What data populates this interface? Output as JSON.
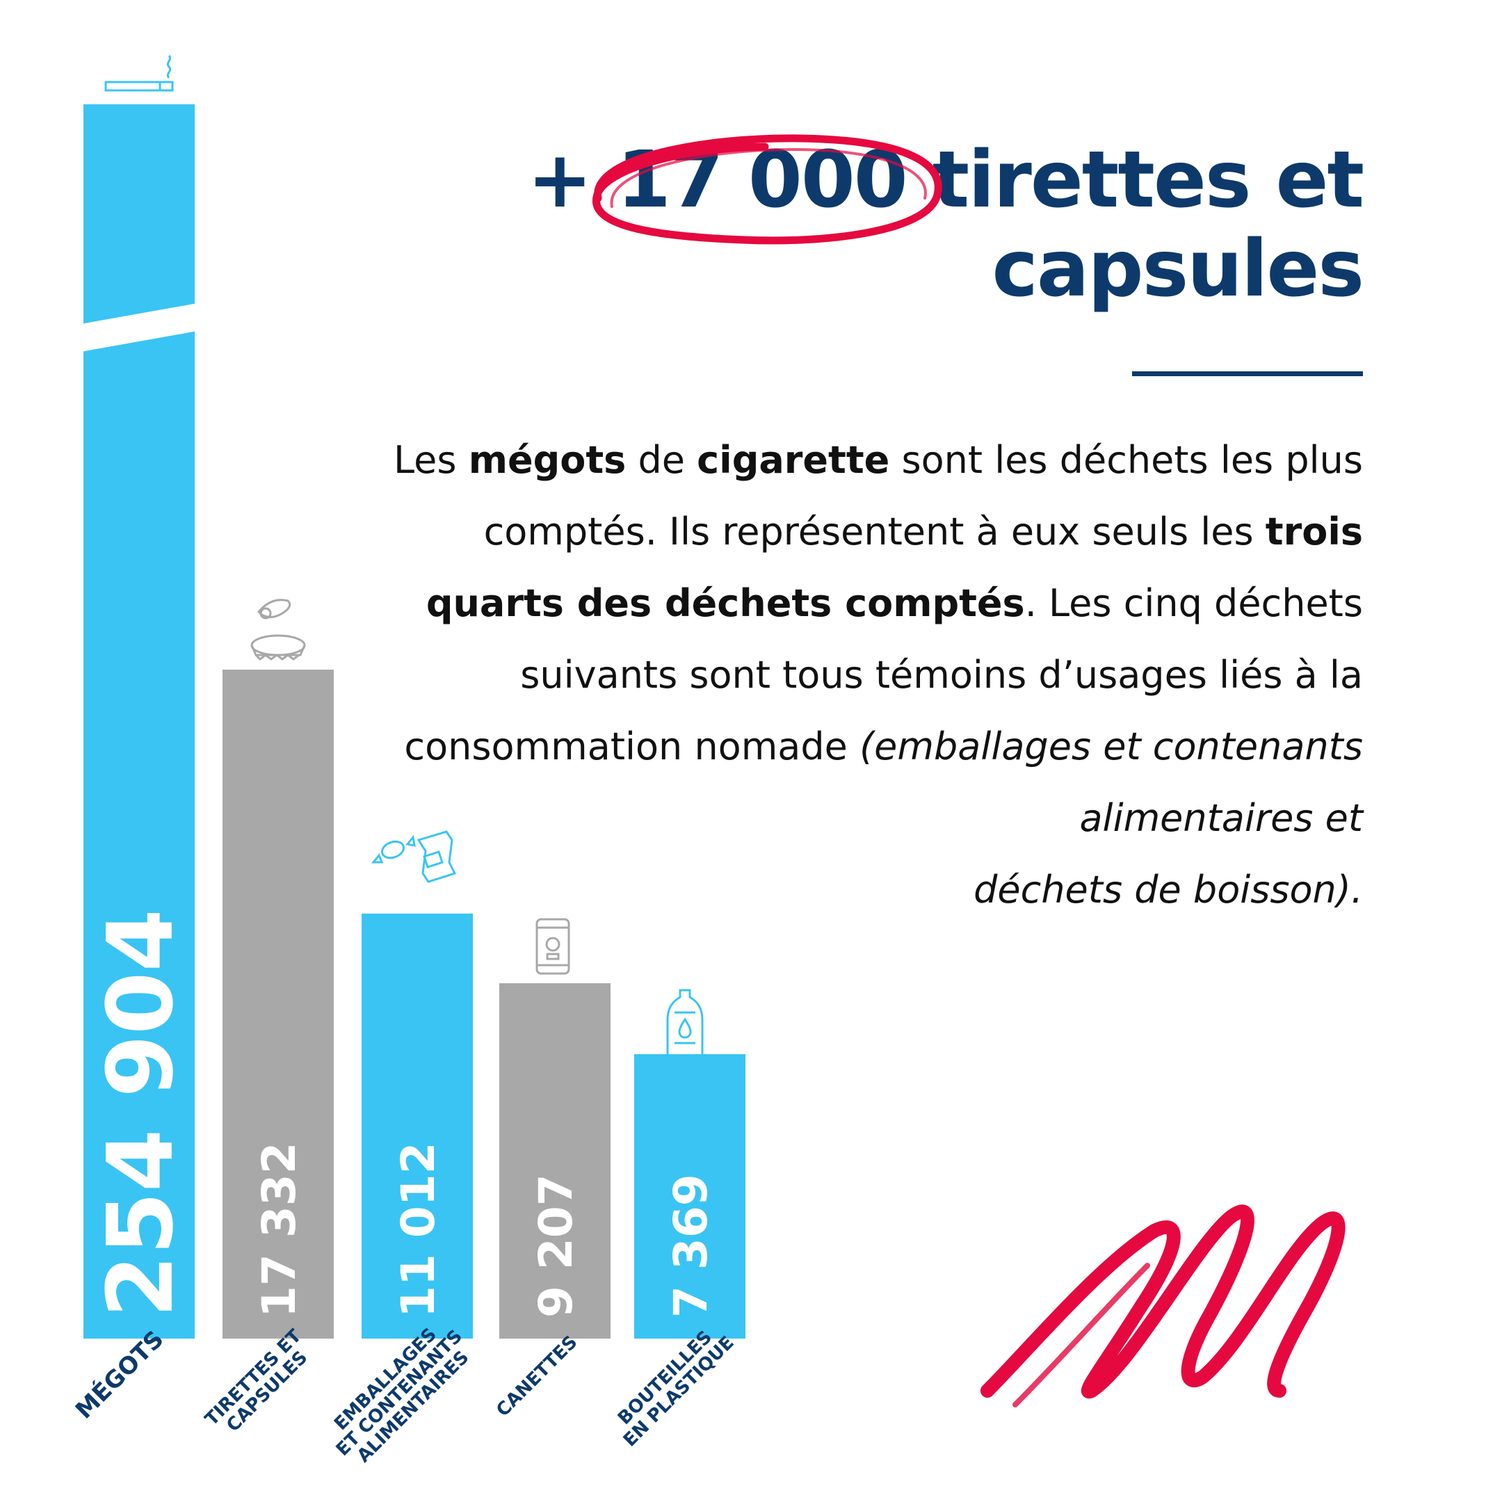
{
  "headline": {
    "highlight": "+ 17 000",
    "line1_rest": " tirettes et",
    "line2": "capsules"
  },
  "body": {
    "p1": "Les ",
    "b1": "mégots",
    "p2": " de ",
    "b2": "cigarette",
    "p3": " sont les déchets les plus comptés. Ils représentent à eux seuls les ",
    "b3": "trois quarts des déchets comptés",
    "p4": ". Les cinq déchets suivants sont tous témoins d’usages liés à la consommation nomade ",
    "i1": "(emballages et contenants alimentaires et",
    "i2": "déchets de boisson)."
  },
  "colors": {
    "blue": "#3ac4f3",
    "gray": "#a8a8a8",
    "navy": "#0d3a6b",
    "red": "#e5093f"
  },
  "chart_data": {
    "type": "bar",
    "axis_break": true,
    "categories": [
      [
        "MÉGOTS"
      ],
      [
        "TIRETTES ET",
        "CAPSULES"
      ],
      [
        "EMBALLAGES",
        "ET CONTENANTS",
        "ALIMENTAIRES"
      ],
      [
        "CANETTES"
      ],
      [
        "BOUTEILLES",
        "EN PLASTIQUE"
      ]
    ],
    "values": [
      254904,
      17332,
      11012,
      9207,
      7369
    ],
    "value_labels": [
      "254 904",
      "17 332",
      "11 012",
      "9 207",
      "7 369"
    ],
    "bar_colors": [
      "blue",
      "gray",
      "blue",
      "gray",
      "blue"
    ],
    "icons": [
      "cigarette-icon",
      "pull-tab-and-cap-icon",
      "candy-and-snack-pack-icon",
      "can-icon",
      "bottle-icon"
    ]
  }
}
